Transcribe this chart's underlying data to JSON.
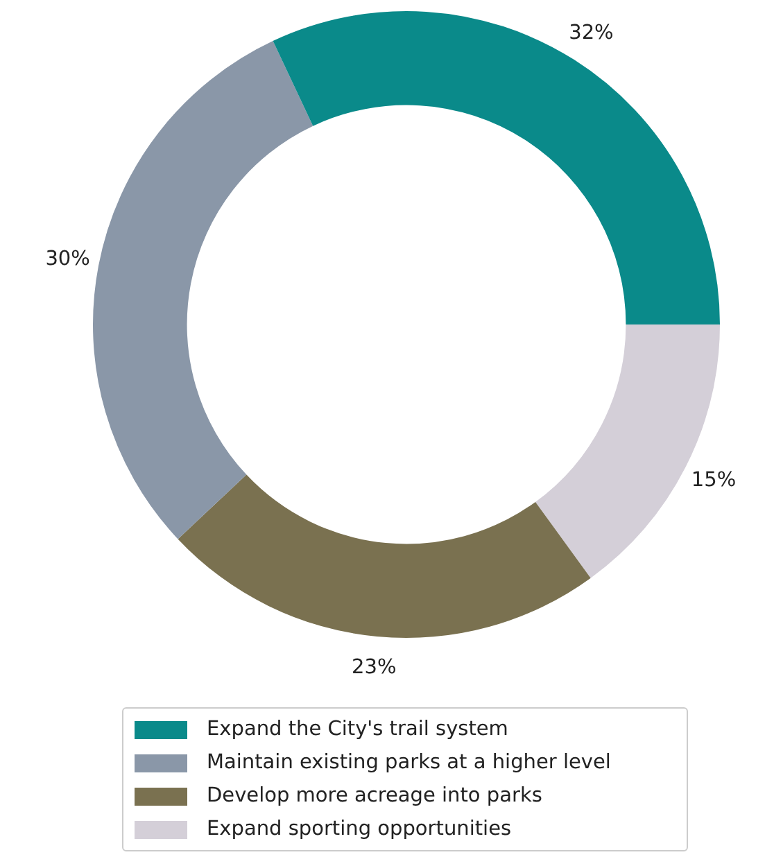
{
  "chart_data": {
    "type": "donut",
    "categories": [
      "Expand the City's trail system",
      "Maintain existing parks at a higher level",
      "Develop more acreage into parks",
      "Expand sporting opportunities"
    ],
    "values": [
      32,
      30,
      23,
      15
    ],
    "value_labels": [
      "32%",
      "30%",
      "23%",
      "15%"
    ],
    "colors": [
      "#0a8a8a",
      "#8a97a8",
      "#7a7150",
      "#d4cfd8"
    ],
    "legend": "bottom"
  }
}
